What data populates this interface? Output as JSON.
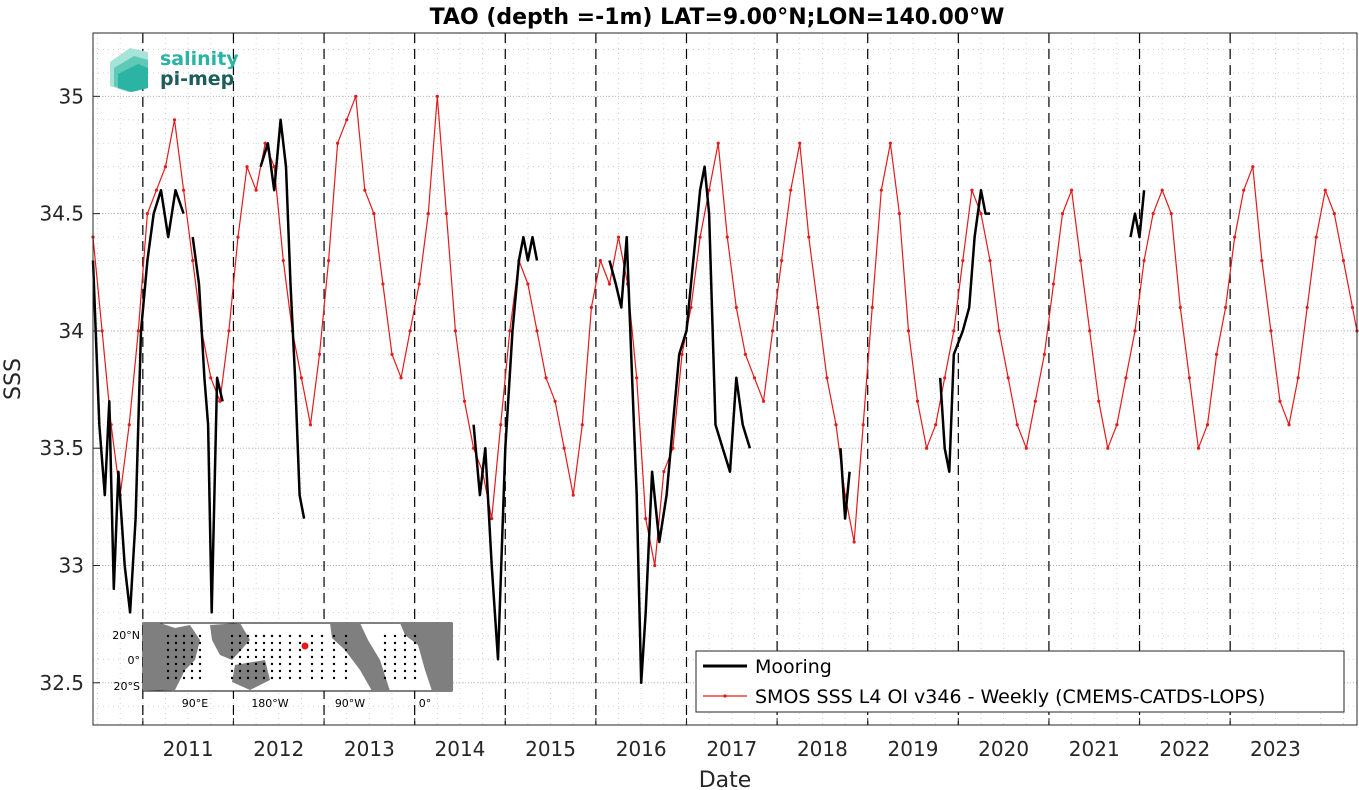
{
  "chart_data": {
    "type": "line",
    "title": "TAO (depth =-1m) LAT=9.00°N;LON=140.00°W",
    "xlabel": "Date",
    "ylabel": "SSS",
    "xlim": [
      2010.45,
      2024.4
    ],
    "ylim": [
      32.32,
      35.27
    ],
    "x_ticks": [
      2011,
      2012,
      2013,
      2014,
      2015,
      2016,
      2017,
      2018,
      2019,
      2020,
      2021,
      2022,
      2023
    ],
    "x_tick_labels": [
      "2011",
      "2012",
      "2013",
      "2014",
      "2015",
      "2016",
      "2017",
      "2018",
      "2019",
      "2020",
      "2021",
      "2022",
      "2023"
    ],
    "y_ticks": [
      32.5,
      33,
      33.5,
      34,
      34.5,
      35
    ],
    "y_tick_labels": [
      "32.5",
      "33",
      "33.5",
      "34",
      "34.5",
      "35"
    ],
    "grid": true,
    "year_boundaries_dashed": true,
    "legend_position": "bottom-right",
    "series": [
      {
        "name": "Mooring",
        "color": "#000000",
        "x": [
          2010.45,
          2010.52,
          2010.58,
          2010.63,
          2010.68,
          2010.73,
          2010.8,
          2010.86,
          2010.92,
          2010.98,
          2011.05,
          2011.12,
          2011.2,
          2011.28,
          2011.36,
          2011.45,
          null,
          2011.55,
          2011.62,
          2011.68,
          2011.72,
          2011.76,
          2011.82,
          2011.88,
          null,
          2012.3,
          2012.38,
          2012.45,
          2012.52,
          2012.58,
          2012.63,
          2012.68,
          2012.73,
          2012.78,
          null,
          2014.65,
          2014.72,
          2014.78,
          2014.85,
          2014.92,
          2015.0,
          2015.08,
          2015.15,
          2015.2,
          2015.25,
          2015.3,
          2015.35,
          null,
          2016.15,
          2016.22,
          2016.28,
          2016.34,
          2016.4,
          2016.45,
          2016.5,
          2016.55,
          2016.62,
          2016.7,
          2016.78,
          2016.85,
          2016.92,
          2017.0,
          2017.05,
          2017.1,
          2017.15,
          2017.2,
          2017.25,
          2017.32,
          2017.4,
          2017.48,
          2017.55,
          2017.62,
          2017.7,
          null,
          2018.7,
          2018.75,
          2018.8,
          null,
          2019.8,
          2019.85,
          2019.9,
          2019.95,
          2020.05,
          2020.12,
          2020.18,
          2020.25,
          2020.3,
          2020.35,
          null,
          2021.9,
          2021.95,
          2022.0,
          2022.05
        ],
        "y": [
          34.3,
          33.6,
          33.3,
          33.7,
          32.9,
          33.4,
          33.0,
          32.8,
          33.2,
          34.0,
          34.3,
          34.5,
          34.6,
          34.4,
          34.6,
          34.5,
          null,
          34.4,
          34.2,
          33.8,
          33.6,
          32.8,
          33.8,
          33.7,
          null,
          34.7,
          34.8,
          34.6,
          34.9,
          34.7,
          34.2,
          33.8,
          33.3,
          33.2,
          null,
          33.6,
          33.3,
          33.5,
          33.0,
          32.6,
          33.5,
          34.0,
          34.3,
          34.4,
          34.3,
          34.4,
          34.3,
          null,
          34.3,
          34.2,
          34.1,
          34.4,
          33.8,
          33.3,
          32.5,
          32.8,
          33.4,
          33.1,
          33.3,
          33.6,
          33.9,
          34.0,
          34.2,
          34.4,
          34.6,
          34.7,
          34.5,
          33.6,
          33.5,
          33.4,
          33.8,
          33.6,
          33.5,
          null,
          33.5,
          33.2,
          33.4,
          null,
          33.8,
          33.5,
          33.4,
          33.9,
          34.0,
          34.1,
          34.4,
          34.6,
          34.5,
          34.5,
          null,
          34.4,
          34.5,
          34.4,
          34.6
        ]
      },
      {
        "name": "SMOS SSS L4 OI v346 - Weekly (CMEMS-CATDS-LOPS)",
        "color": "#e41a1c",
        "x": [
          2010.45,
          2010.55,
          2010.65,
          2010.75,
          2010.85,
          2010.95,
          2011.05,
          2011.15,
          2011.25,
          2011.35,
          2011.45,
          2011.55,
          2011.65,
          2011.75,
          2011.85,
          2011.95,
          2012.05,
          2012.15,
          2012.25,
          2012.35,
          2012.45,
          2012.55,
          2012.65,
          2012.75,
          2012.85,
          2012.95,
          2013.05,
          2013.15,
          2013.25,
          2013.35,
          2013.45,
          2013.55,
          2013.65,
          2013.75,
          2013.85,
          2013.95,
          2014.05,
          2014.15,
          2014.25,
          2014.35,
          2014.45,
          2014.55,
          2014.65,
          2014.75,
          2014.85,
          2014.95,
          2015.05,
          2015.15,
          2015.25,
          2015.35,
          2015.45,
          2015.55,
          2015.65,
          2015.75,
          2015.85,
          2015.95,
          2016.05,
          2016.15,
          2016.25,
          2016.35,
          2016.45,
          2016.55,
          2016.65,
          2016.75,
          2016.85,
          2016.95,
          2017.05,
          2017.15,
          2017.25,
          2017.35,
          2017.45,
          2017.55,
          2017.65,
          2017.75,
          2017.85,
          2017.95,
          2018.05,
          2018.15,
          2018.25,
          2018.35,
          2018.45,
          2018.55,
          2018.65,
          2018.75,
          2018.85,
          2018.95,
          2019.05,
          2019.15,
          2019.25,
          2019.35,
          2019.45,
          2019.55,
          2019.65,
          2019.75,
          2019.85,
          2019.95,
          2020.05,
          2020.15,
          2020.25,
          2020.35,
          2020.45,
          2020.55,
          2020.65,
          2020.75,
          2020.85,
          2020.95,
          2021.05,
          2021.15,
          2021.25,
          2021.35,
          2021.45,
          2021.55,
          2021.65,
          2021.75,
          2021.85,
          2021.95,
          2022.05,
          2022.15,
          2022.25,
          2022.35,
          2022.45,
          2022.55,
          2022.65,
          2022.75,
          2022.85,
          2022.95,
          2023.05,
          2023.15,
          2023.25,
          2023.35,
          2023.45,
          2023.55,
          2023.65,
          2023.75,
          2023.85,
          2023.95,
          2024.05,
          2024.15,
          2024.25,
          2024.35,
          2024.4
        ],
        "y": [
          34.4,
          34.0,
          33.6,
          33.3,
          33.6,
          34.0,
          34.5,
          34.6,
          34.7,
          34.9,
          34.6,
          34.3,
          34.0,
          33.8,
          33.7,
          34.0,
          34.4,
          34.7,
          34.6,
          34.8,
          34.7,
          34.3,
          34.0,
          33.8,
          33.6,
          33.9,
          34.3,
          34.8,
          34.9,
          35.0,
          34.6,
          34.5,
          34.2,
          33.9,
          33.8,
          34.0,
          34.2,
          34.5,
          35.0,
          34.5,
          34.0,
          33.7,
          33.5,
          33.4,
          33.2,
          33.6,
          34.0,
          34.3,
          34.2,
          34.0,
          33.8,
          33.7,
          33.5,
          33.3,
          33.6,
          34.1,
          34.3,
          34.2,
          34.4,
          34.2,
          33.8,
          33.2,
          33.0,
          33.4,
          33.5,
          33.9,
          34.1,
          34.4,
          34.6,
          34.8,
          34.4,
          34.1,
          33.9,
          33.8,
          33.7,
          34.0,
          34.3,
          34.6,
          34.8,
          34.4,
          34.1,
          33.8,
          33.6,
          33.3,
          33.1,
          33.6,
          34.1,
          34.6,
          34.8,
          34.5,
          34.0,
          33.7,
          33.5,
          33.6,
          33.8,
          34.0,
          34.3,
          34.6,
          34.5,
          34.3,
          34.0,
          33.8,
          33.6,
          33.5,
          33.7,
          33.9,
          34.2,
          34.5,
          34.6,
          34.3,
          34.0,
          33.7,
          33.5,
          33.6,
          33.8,
          34.0,
          34.3,
          34.5,
          34.6,
          34.5,
          34.1,
          33.8,
          33.5,
          33.6,
          33.9,
          34.1,
          34.4,
          34.6,
          34.7,
          34.3,
          34.0,
          33.7,
          33.6,
          33.8,
          34.1,
          34.4,
          34.6,
          34.5,
          34.3,
          34.1,
          34.0
        ]
      }
    ]
  },
  "legend": {
    "items": [
      "Mooring",
      "SMOS SSS L4 OI v346 - Weekly (CMEMS-CATDS-LOPS)"
    ]
  },
  "logo": {
    "line1": "salinity",
    "line2": "pi-mep",
    "color1": "#2bb3a3",
    "color2": "#1d5e5a"
  },
  "inset_map": {
    "lat_labels": [
      "20°N",
      "0°",
      "20°S"
    ],
    "lon_labels": [
      "90°E",
      "180°W",
      "90°W",
      "0°"
    ],
    "marker_color": "#e41a1c",
    "ocean_color": "#ffffff",
    "land_color": "#7f7f7f"
  }
}
